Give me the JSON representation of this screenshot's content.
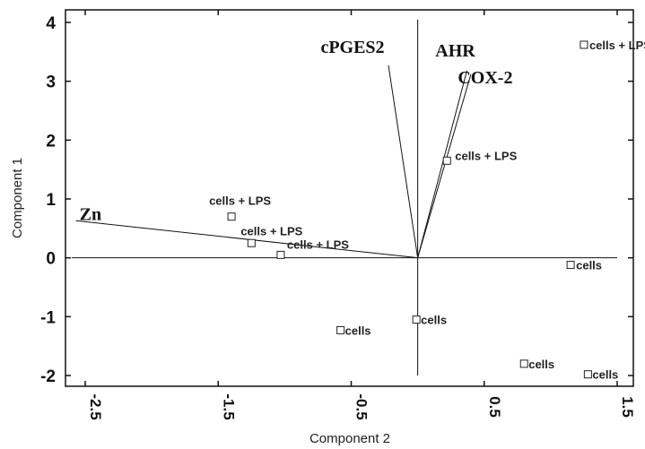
{
  "chart_data": {
    "type": "scatter",
    "xlabel": "Component 2",
    "ylabel": "Component 1",
    "xlim": [
      -2.6,
      1.55
    ],
    "ylim": [
      -2.15,
      4.15
    ],
    "x_ticks": [
      -2.5,
      -1.5,
      -0.5,
      0.5,
      1.5
    ],
    "x_tick_labels": [
      "-2.5",
      "-1.5",
      "-0.5",
      "0.5",
      "1.5"
    ],
    "y_ticks": [
      4,
      3,
      2,
      1,
      0,
      -1,
      -2
    ],
    "y_tick_labels": [
      "4",
      "3",
      "2",
      "1",
      "0",
      "-1",
      "-2"
    ],
    "grid": false,
    "points": [
      {
        "x": 1.25,
        "y": 3.62,
        "label": "cells + LPS"
      },
      {
        "x": 0.22,
        "y": 1.65,
        "label": "cells + LPS"
      },
      {
        "x": -1.4,
        "y": 0.7,
        "label": "cells + LPS"
      },
      {
        "x": -1.25,
        "y": 0.25,
        "label": "cells + LPS"
      },
      {
        "x": -1.03,
        "y": 0.05,
        "label": "cells + LPS"
      },
      {
        "x": 1.15,
        "y": -0.12,
        "label": "cells"
      },
      {
        "x": -0.01,
        "y": -1.05,
        "label": "cells"
      },
      {
        "x": -0.58,
        "y": -1.23,
        "label": "cells"
      },
      {
        "x": 0.8,
        "y": -1.8,
        "label": "cells"
      },
      {
        "x": 1.28,
        "y": -1.98,
        "label": "cells"
      }
    ],
    "vectors": [
      {
        "name": "cPGES2",
        "x": -0.22,
        "y": 3.27
      },
      {
        "name": "AHR",
        "x": 0.37,
        "y": 3.18
      },
      {
        "name": "COX-2",
        "x": 0.4,
        "y": 3.12
      },
      {
        "name": "Zn",
        "x": -2.57,
        "y": 0.63
      }
    ]
  }
}
